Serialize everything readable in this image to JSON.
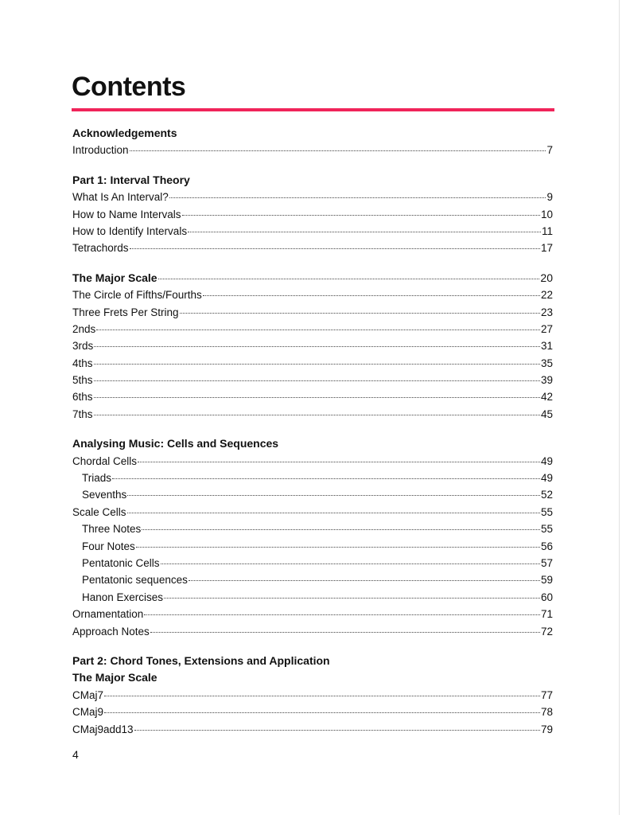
{
  "title": "Contents",
  "accent_color": "#f0245a",
  "page_number": "4",
  "sections": [
    {
      "rows": [
        {
          "label": "Acknowledgements",
          "heading": true
        },
        {
          "label": "Introduction",
          "page": "7"
        }
      ]
    },
    {
      "rows": [
        {
          "label": "Part 1: Interval Theory",
          "heading": true
        },
        {
          "label": "What Is An Interval?",
          "page": "9"
        },
        {
          "label": "How to Name Intervals",
          "page": "10"
        },
        {
          "label": "How to Identify Intervals",
          "page": "11"
        },
        {
          "label": "Tetrachords",
          "page": "17"
        }
      ]
    },
    {
      "rows": [
        {
          "label": "The Major Scale",
          "page": "20",
          "heading": true
        },
        {
          "label": "The Circle of Fifths/Fourths",
          "page": "22"
        },
        {
          "label": "Three Frets Per String",
          "page": "23"
        },
        {
          "label": "2nds",
          "page": "27"
        },
        {
          "label": "3rds",
          "page": "31"
        },
        {
          "label": "4ths",
          "page": "35"
        },
        {
          "label": "5ths",
          "page": "39"
        },
        {
          "label": "6ths",
          "page": "42"
        },
        {
          "label": "7ths",
          "page": "45"
        }
      ]
    },
    {
      "rows": [
        {
          "label": "Analysing Music: Cells and Sequences",
          "heading": true
        },
        {
          "label": "Chordal Cells",
          "page": "49"
        },
        {
          "label": "Triads",
          "page": "49",
          "indent": true
        },
        {
          "label": "Sevenths",
          "page": "52",
          "indent": true
        },
        {
          "label": "Scale Cells",
          "page": "55"
        },
        {
          "label": "Three Notes",
          "page": "55",
          "indent": true
        },
        {
          "label": "Four Notes",
          "page": "56",
          "indent": true
        },
        {
          "label": "Pentatonic Cells",
          "page": "57",
          "indent": true
        },
        {
          "label": "Pentatonic sequences",
          "page": "59",
          "indent": true
        },
        {
          "label": "Hanon Exercises",
          "page": "60",
          "indent": true
        },
        {
          "label": "Ornamentation",
          "page": "71"
        },
        {
          "label": "Approach Notes",
          "page": "72"
        }
      ]
    },
    {
      "rows": [
        {
          "label": "Part 2: Chord Tones, Extensions and Application",
          "heading": true
        },
        {
          "label": "The Major Scale",
          "heading": true
        },
        {
          "label": "CMaj7",
          "page": "77"
        },
        {
          "label": "CMaj9",
          "page": "78"
        },
        {
          "label": "CMaj9add13",
          "page": "79"
        }
      ]
    }
  ]
}
